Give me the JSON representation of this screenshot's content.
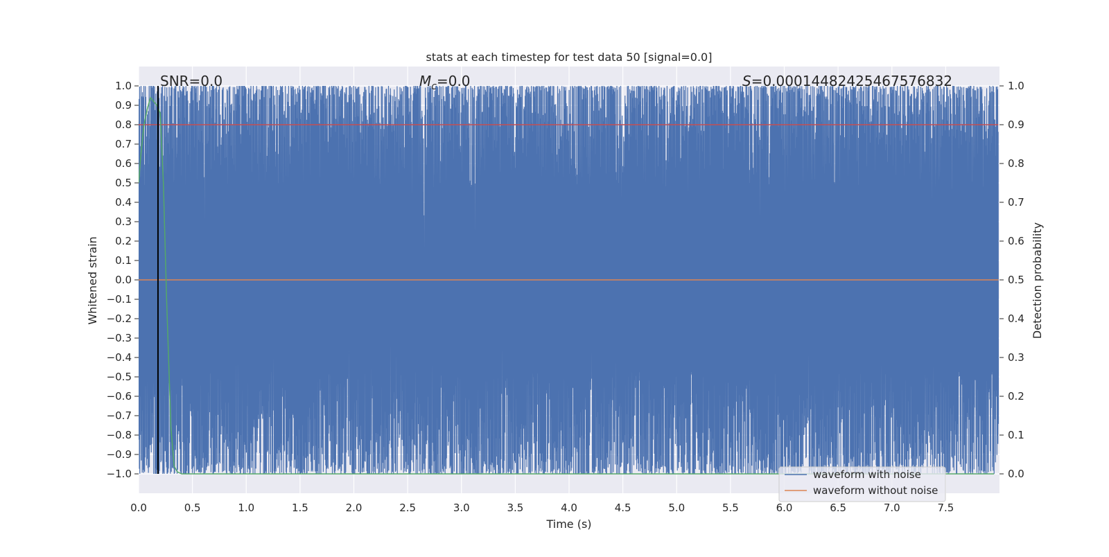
{
  "chart_data": {
    "type": "line",
    "title": "stats at each timestep for test data 50 [signal=0.0]",
    "xlabel": "Time (s)",
    "ylabel": "Whitened strain",
    "y2label": "Detection probability",
    "xlim": [
      0.0,
      8.0
    ],
    "ylim": [
      -1.1,
      1.1
    ],
    "y2lim": [
      -0.05,
      1.05
    ],
    "x_ticks": [
      0.0,
      0.5,
      1.0,
      1.5,
      2.0,
      2.5,
      3.0,
      3.5,
      4.0,
      4.5,
      5.0,
      5.5,
      6.0,
      6.5,
      7.0,
      7.5
    ],
    "x_tick_labels": [
      "0.0",
      "0.5",
      "1.0",
      "1.5",
      "2.0",
      "2.5",
      "3.0",
      "3.5",
      "4.0",
      "4.5",
      "5.0",
      "5.5",
      "6.0",
      "6.5",
      "7.0",
      "7.5"
    ],
    "y_ticks": [
      1.0,
      0.9,
      0.8,
      0.7,
      0.6,
      0.5,
      0.4,
      0.3,
      0.2,
      0.1,
      0.0,
      -0.1,
      -0.2,
      -0.3,
      -0.4,
      -0.5,
      -0.6,
      -0.7,
      -0.8,
      -0.9,
      -1.0
    ],
    "y_tick_labels": [
      "1.0",
      "0.9",
      "0.8",
      "0.7",
      "0.6",
      "0.5",
      "0.4",
      "0.3",
      "0.2",
      "0.1",
      "0.0",
      "−0.1",
      "−0.2",
      "−0.3",
      "−0.4",
      "−0.5",
      "−0.6",
      "−0.7",
      "−0.8",
      "−0.9",
      "−1.0"
    ],
    "y2_ticks": [
      1.0,
      0.9,
      0.8,
      0.7,
      0.6,
      0.5,
      0.4,
      0.3,
      0.2,
      0.1,
      0.0
    ],
    "y2_tick_labels": [
      "1.0",
      "0.9",
      "0.8",
      "0.7",
      "0.6",
      "0.5",
      "0.4",
      "0.3",
      "0.2",
      "0.1",
      "0.0"
    ],
    "grid": true,
    "legend_position": "lower-right",
    "annotations": {
      "snr": "SNR=0.0",
      "mc_symbol": "M",
      "mc_sub": "c",
      "mc_value": "=0.0",
      "s_symbol": "S",
      "s_value": "=0.00014482425467576832"
    },
    "series": [
      {
        "name": "waveform with noise",
        "color": "#4c72b0",
        "axis": "left",
        "description": "noise normalized to [-1, 1], 8 s, dense",
        "x_range": [
          0.0,
          7.99
        ],
        "y_range": [
          -1.0,
          1.0
        ]
      },
      {
        "name": "waveform without noise",
        "color": "#dd8452",
        "axis": "left",
        "x": [
          0.0,
          7.99
        ],
        "y": [
          0.0,
          0.0
        ]
      },
      {
        "name": "detection probability",
        "color": "#55a868",
        "axis": "right",
        "x": [
          0.0,
          0.02,
          0.05,
          0.08,
          0.11,
          0.14,
          0.17,
          0.2,
          0.23,
          0.26,
          0.3,
          0.33,
          0.36,
          0.4,
          1.0,
          4.0,
          7.95
        ],
        "y": [
          0.75,
          0.82,
          0.9,
          0.94,
          0.97,
          0.96,
          0.95,
          0.93,
          0.75,
          0.45,
          0.12,
          0.02,
          0.005,
          0.0,
          0.0,
          0.0,
          0.0
        ]
      },
      {
        "name": "threshold",
        "color": "#c44e52",
        "axis": "right",
        "x": [
          0.0,
          7.99
        ],
        "y": [
          0.9,
          0.9
        ]
      },
      {
        "name": "marker",
        "color": "#000000",
        "axis": "left",
        "x": [
          0.18,
          0.18
        ],
        "y": [
          -1.0,
          1.0
        ]
      }
    ]
  }
}
